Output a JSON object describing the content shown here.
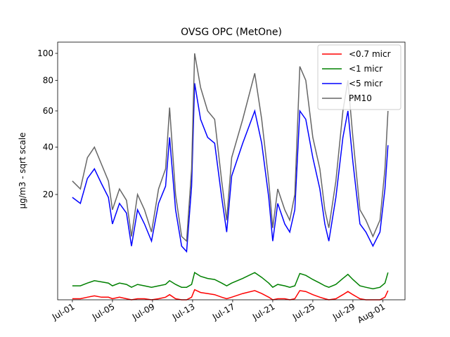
{
  "chart_data": {
    "type": "line",
    "title": "OVSG OPC (MetOne)",
    "ylabel": "µg/m3 - sqrt scale",
    "yscale": "sqrt",
    "legend": "upper right",
    "x": [
      1.0,
      1.8,
      2.5,
      3.2,
      3.9,
      4.6,
      5.0,
      5.7,
      6.4,
      6.9,
      7.5,
      8.2,
      8.9,
      9.6,
      10.3,
      10.7,
      11.3,
      11.9,
      12.4,
      12.9,
      13.2,
      13.8,
      14.5,
      15.2,
      15.9,
      16.4,
      16.9,
      18.0,
      19.2,
      19.9,
      20.6,
      21.0,
      21.5,
      22.2,
      22.7,
      23.2,
      23.7,
      24.3,
      25.0,
      25.7,
      26.2,
      26.6,
      27.3,
      28.0,
      28.5,
      29.0,
      29.7,
      30.3,
      31.0,
      31.7,
      32.2,
      32.5
    ],
    "series": [
      {
        "name": "<0.7 micr",
        "color": "#ff0000",
        "values": [
          0.15,
          0.15,
          0.2,
          0.25,
          0.2,
          0.2,
          0.15,
          0.2,
          0.15,
          0.12,
          0.15,
          0.15,
          0.12,
          0.15,
          0.2,
          0.3,
          0.15,
          0.12,
          0.12,
          0.2,
          0.55,
          0.4,
          0.35,
          0.3,
          0.2,
          0.15,
          0.2,
          0.35,
          0.5,
          0.35,
          0.2,
          0.12,
          0.15,
          0.15,
          0.12,
          0.15,
          0.5,
          0.45,
          0.3,
          0.2,
          0.15,
          0.12,
          0.15,
          0.3,
          0.45,
          0.3,
          0.15,
          0.12,
          0.12,
          0.12,
          0.2,
          0.5
        ]
      },
      {
        "name": "<1 micr",
        "color": "#008000",
        "values": [
          0.8,
          0.8,
          1.0,
          1.2,
          1.1,
          1.0,
          0.8,
          1.0,
          0.9,
          0.7,
          0.9,
          0.8,
          0.7,
          0.8,
          0.9,
          1.2,
          0.9,
          0.7,
          0.7,
          0.9,
          2.0,
          1.6,
          1.4,
          1.3,
          1.0,
          0.8,
          1.0,
          1.4,
          2.0,
          1.5,
          1.0,
          0.7,
          0.9,
          0.8,
          0.7,
          0.8,
          1.9,
          1.7,
          1.3,
          1.0,
          0.8,
          0.7,
          0.9,
          1.4,
          1.8,
          1.3,
          0.8,
          0.7,
          0.6,
          0.7,
          1.0,
          2.0
        ]
      },
      {
        "name": "<5 micr",
        "color": "#0000ff",
        "values": [
          19,
          17,
          26,
          30,
          24,
          19,
          11,
          17,
          14,
          6,
          15,
          11,
          7,
          17,
          23,
          45,
          15,
          6,
          5,
          23,
          78,
          55,
          45,
          42,
          19,
          9,
          27,
          42,
          60,
          42,
          19,
          7,
          17,
          11,
          9,
          15,
          60,
          55,
          35,
          22,
          11,
          7,
          19,
          45,
          60,
          33,
          11,
          9,
          6,
          9,
          22,
          41
        ]
      },
      {
        "name": "PM10",
        "color": "#666666",
        "values": [
          25,
          22,
          35,
          40,
          32,
          25,
          15,
          22,
          18,
          8,
          20,
          15,
          9,
          22,
          30,
          62,
          20,
          8,
          7,
          30,
          100,
          75,
          60,
          55,
          25,
          12,
          35,
          55,
          85,
          55,
          25,
          10,
          22,
          15,
          12,
          20,
          90,
          80,
          45,
          30,
          15,
          10,
          25,
          60,
          80,
          45,
          15,
          12,
          8,
          12,
          30,
          60
        ]
      }
    ],
    "xlim": [
      -0.47,
      34.2
    ],
    "xticks": [
      {
        "value": 1,
        "label": "Jul-01"
      },
      {
        "value": 5,
        "label": "Jul-05"
      },
      {
        "value": 9,
        "label": "Jul-09"
      },
      {
        "value": 13,
        "label": "Jul-13"
      },
      {
        "value": 17,
        "label": "Jul-17"
      },
      {
        "value": 21,
        "label": "Jul-21"
      },
      {
        "value": 25,
        "label": "Jul-25"
      },
      {
        "value": 29,
        "label": "Jul-29"
      },
      {
        "value": 32,
        "label": "Aug-01"
      }
    ],
    "ylim": [
      0.12,
      109
    ],
    "yticks": [
      20,
      40,
      60,
      80,
      100
    ]
  }
}
